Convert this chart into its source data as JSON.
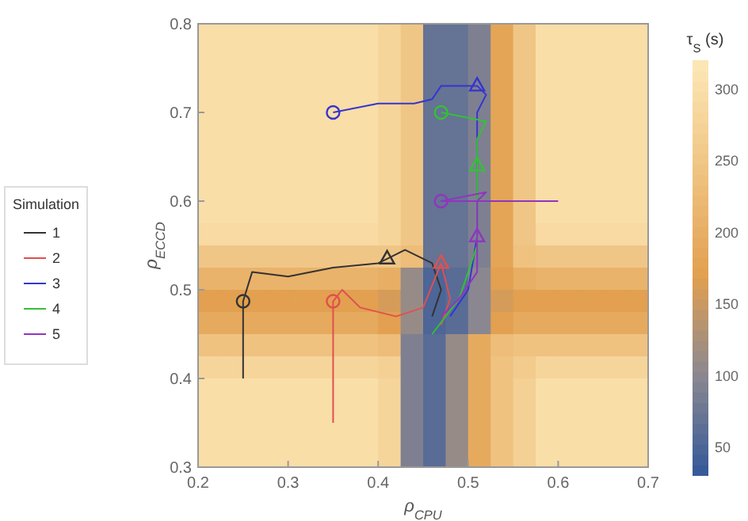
{
  "chart_data": {
    "type": "heatmap",
    "xlabel": "ρ$_{CPU}$",
    "ylabel": "ρ$_{ECCD}$",
    "clabel": "τ$_{S}$ (s)",
    "legend_title": "Simulation",
    "legend": "left",
    "xlim": [
      0.2,
      0.7
    ],
    "xticks": [
      0.2,
      0.3,
      0.4,
      0.5,
      0.6,
      0.7
    ],
    "ylim": [
      0.3,
      0.8
    ],
    "yticks": [
      0.3,
      0.4,
      0.5,
      0.6,
      0.7,
      0.8
    ],
    "clim": [
      30,
      320
    ],
    "cticks": [
      50,
      100,
      150,
      200,
      250,
      300
    ],
    "cells": [
      [
        300,
        300,
        300,
        300,
        300,
        300,
        300,
        300,
        280,
        250,
        70,
        70,
        90,
        180,
        250,
        300,
        300,
        300,
        300,
        300
      ],
      [
        300,
        300,
        300,
        300,
        300,
        300,
        300,
        300,
        280,
        250,
        70,
        70,
        90,
        180,
        250,
        300,
        300,
        300,
        300,
        300
      ],
      [
        300,
        300,
        300,
        300,
        300,
        300,
        300,
        300,
        280,
        250,
        70,
        70,
        90,
        180,
        250,
        300,
        300,
        300,
        300,
        300
      ],
      [
        300,
        300,
        300,
        300,
        300,
        300,
        300,
        300,
        280,
        250,
        70,
        70,
        90,
        180,
        250,
        300,
        300,
        300,
        300,
        300
      ],
      [
        300,
        300,
        300,
        300,
        300,
        300,
        300,
        300,
        280,
        250,
        70,
        70,
        90,
        180,
        250,
        300,
        300,
        300,
        300,
        300
      ],
      [
        300,
        300,
        300,
        300,
        300,
        300,
        300,
        300,
        280,
        250,
        70,
        70,
        90,
        180,
        250,
        300,
        300,
        300,
        300,
        300
      ],
      [
        300,
        300,
        300,
        300,
        300,
        300,
        300,
        300,
        280,
        250,
        70,
        70,
        90,
        180,
        250,
        300,
        300,
        300,
        300,
        300
      ],
      [
        300,
        300,
        300,
        300,
        300,
        300,
        300,
        300,
        280,
        250,
        70,
        70,
        90,
        180,
        250,
        300,
        300,
        300,
        300,
        300
      ],
      [
        300,
        300,
        300,
        300,
        300,
        300,
        300,
        300,
        280,
        250,
        70,
        70,
        90,
        180,
        250,
        300,
        300,
        300,
        300,
        300
      ],
      [
        290,
        290,
        290,
        290,
        290,
        290,
        290,
        290,
        280,
        250,
        70,
        70,
        90,
        180,
        250,
        290,
        290,
        290,
        290,
        290
      ],
      [
        250,
        250,
        250,
        250,
        250,
        250,
        250,
        250,
        250,
        230,
        70,
        70,
        90,
        180,
        240,
        250,
        250,
        250,
        250,
        250
      ],
      [
        210,
        210,
        210,
        210,
        210,
        210,
        210,
        210,
        200,
        110,
        50,
        60,
        100,
        170,
        200,
        210,
        210,
        210,
        210,
        210
      ],
      [
        170,
        170,
        170,
        170,
        170,
        170,
        170,
        170,
        160,
        110,
        50,
        60,
        100,
        160,
        170,
        170,
        170,
        170,
        170,
        170
      ],
      [
        190,
        190,
        190,
        190,
        190,
        190,
        190,
        190,
        170,
        110,
        50,
        60,
        100,
        170,
        190,
        190,
        190,
        190,
        190,
        190
      ],
      [
        240,
        240,
        240,
        240,
        240,
        240,
        240,
        240,
        230,
        90,
        60,
        110,
        190,
        230,
        240,
        240,
        240,
        240,
        240,
        240
      ],
      [
        280,
        280,
        280,
        280,
        280,
        280,
        280,
        280,
        270,
        90,
        60,
        110,
        190,
        240,
        260,
        280,
        280,
        280,
        280,
        280
      ],
      [
        300,
        300,
        300,
        300,
        300,
        300,
        300,
        300,
        280,
        90,
        60,
        110,
        190,
        240,
        270,
        300,
        300,
        300,
        300,
        300
      ],
      [
        300,
        300,
        300,
        300,
        300,
        300,
        300,
        300,
        280,
        90,
        60,
        110,
        190,
        240,
        270,
        300,
        300,
        300,
        300,
        300
      ],
      [
        300,
        300,
        300,
        300,
        300,
        300,
        300,
        300,
        280,
        90,
        60,
        110,
        190,
        240,
        270,
        300,
        300,
        300,
        300,
        300
      ],
      [
        300,
        300,
        300,
        300,
        300,
        300,
        300,
        300,
        280,
        90,
        60,
        110,
        190,
        240,
        270,
        300,
        300,
        300,
        300,
        300
      ]
    ],
    "series": [
      {
        "type": "line",
        "name": "1",
        "color": "#333333",
        "x": [
          0.25,
          0.25,
          0.26,
          0.3,
          0.35,
          0.4,
          0.41,
          0.43,
          0.46,
          0.47,
          0.46
        ],
        "values": [
          0.4,
          0.487,
          0.52,
          0.515,
          0.525,
          0.53,
          0.535,
          0.545,
          0.53,
          0.5,
          0.47
        ]
      },
      {
        "type": "line",
        "name": "2",
        "color": "#e05050",
        "x": [
          0.35,
          0.35,
          0.36,
          0.38,
          0.42,
          0.45,
          0.47,
          0.48,
          0.47
        ],
        "values": [
          0.35,
          0.487,
          0.5,
          0.48,
          0.47,
          0.48,
          0.53,
          0.49,
          0.46
        ]
      },
      {
        "type": "line",
        "name": "3",
        "color": "#3535d0",
        "x": [
          0.35,
          0.4,
          0.44,
          0.46,
          0.47,
          0.51,
          0.52,
          0.51,
          0.51,
          0.51,
          0.5,
          0.48
        ],
        "values": [
          0.7,
          0.71,
          0.71,
          0.715,
          0.73,
          0.73,
          0.72,
          0.7,
          0.62,
          0.56,
          0.5,
          0.47
        ]
      },
      {
        "type": "line",
        "name": "4",
        "color": "#35c035",
        "x": [
          0.47,
          0.52,
          0.51,
          0.51,
          0.51,
          0.49,
          0.46
        ],
        "values": [
          0.7,
          0.69,
          0.67,
          0.64,
          0.55,
          0.49,
          0.45
        ]
      },
      {
        "type": "line",
        "name": "5",
        "color": "#9035c0",
        "x": [
          0.6,
          0.51,
          0.52,
          0.47,
          0.51,
          0.51,
          0.51,
          0.49,
          0.47
        ],
        "values": [
          0.6,
          0.6,
          0.61,
          0.6,
          0.6,
          0.56,
          0.52,
          0.49,
          0.47
        ]
      },
      {
        "type": "scatter",
        "marker": "circle",
        "x": [
          0.25,
          0.35,
          0.35,
          0.47,
          0.47
        ],
        "values": [
          0.487,
          0.487,
          0.7,
          0.7,
          0.6
        ],
        "colors": [
          "#333333",
          "#e05050",
          "#3535d0",
          "#35c035",
          "#9035c0"
        ]
      },
      {
        "type": "scatter",
        "marker": "triangle",
        "x": [
          0.41,
          0.47,
          0.51,
          0.51,
          0.51
        ],
        "values": [
          0.535,
          0.53,
          0.73,
          0.64,
          0.56
        ],
        "colors": [
          "#333333",
          "#e05050",
          "#3535d0",
          "#35c035",
          "#9035c0"
        ]
      }
    ]
  }
}
